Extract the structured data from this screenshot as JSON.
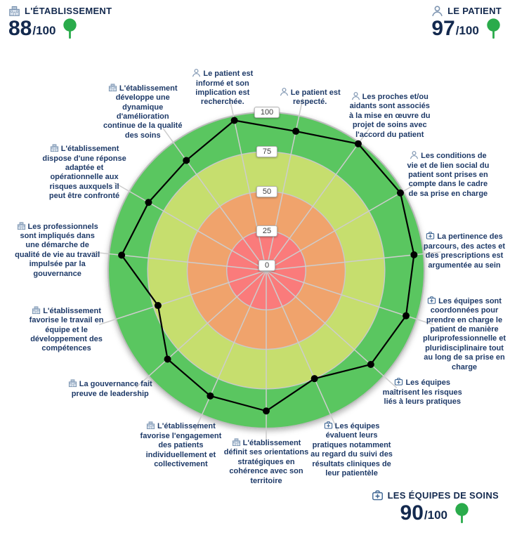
{
  "header_panels": [
    {
      "id": "etablissement",
      "icon": "hospital",
      "label": "L'ÉTABLISSEMENT",
      "score": "88",
      "denominator": "/100"
    },
    {
      "id": "patient",
      "icon": "patient",
      "label": "LE PATIENT",
      "score": "97",
      "denominator": "/100"
    },
    {
      "id": "equipes",
      "icon": "care",
      "label": "LES ÉQUIPES DE SOINS",
      "score": "90",
      "denominator": "/100"
    }
  ],
  "chart_data": {
    "type": "radar",
    "title": "",
    "rlim": [
      0,
      100
    ],
    "tick_labels": [
      "0",
      "25",
      "50",
      "75",
      "100"
    ],
    "tick_values": [
      0,
      25,
      50,
      75,
      100
    ],
    "start_angle_deg": -102,
    "angle_step_deg": 24,
    "grid": "on",
    "legend": "none",
    "colors": {
      "ring_0_25": "#fa7b7b",
      "ring_25_50": "#f0a36c",
      "ring_50_75": "#c6de6e",
      "ring_75_100": "#5ac660",
      "ring_border": "#c9c9c9",
      "outer_border": "#bdbdbd",
      "spoke": "#cdcdcd",
      "series": "#000000",
      "accent_green": "#2aab4b",
      "navy": "#13294e"
    },
    "axes": [
      {
        "label": "Le patient est informé et son implication est recherchée.",
        "icon": "patient",
        "value": 97
      },
      {
        "label": "Le patient est respecté.",
        "icon": "patient",
        "value": 90
      },
      {
        "label": "Les proches et/ou aidants sont associés à la mise en œuvre du projet de soins avec l'accord du patient",
        "icon": "patient",
        "value": 99
      },
      {
        "label": "Les conditions de vie et de lien social du patient sont prises en compte dans le cadre de sa prise en charge",
        "icon": "patient",
        "value": 98
      },
      {
        "label": "La pertinence des parcours, des actes et des prescriptions est argumentée au sein",
        "icon": "care",
        "value": 94
      },
      {
        "label": "Les équipes sont coordonnées pour prendre en charge le patient de manière pluriprofessionnelle et pluridisciplinaire tout au long de sa prise en charge",
        "icon": "care",
        "value": 93
      },
      {
        "label": "Les équipes maîtrisent les risques liés à leurs pratiques",
        "icon": "care",
        "value": 89
      },
      {
        "label": "Les équipes évaluent leurs pratiques notamment au regard du suivi des résultats cliniques de leur patientèle",
        "icon": "care",
        "value": 75
      },
      {
        "label": "L'établissement définit ses orientations stratégiques en cohérence avec son territoire",
        "icon": "hospital",
        "value": 89
      },
      {
        "label": "L'établissement favorise l'engagement des patients individuellement et collectivement",
        "icon": "hospital",
        "value": 87
      },
      {
        "label": "La gouvernance fait preuve de leadership",
        "icon": "hospital",
        "value": 84
      },
      {
        "label": "L'établissement favorise le travail en équipe et le développement des compétences",
        "icon": "hospital",
        "value": 72
      },
      {
        "label": "Les professionnels sont impliqués dans une démarche de qualité de vie au travail impulsée par la gouvernance",
        "icon": "hospital",
        "value": 92
      },
      {
        "label": "L'établissement dispose d'une réponse adaptée et opérationnelle aux risques auxquels il peut être confronté",
        "icon": "hospital",
        "value": 86
      },
      {
        "label": "L'établissement développe une dynamique d'amélioration continue de la qualité des soins",
        "icon": "hospital",
        "value": 86
      }
    ]
  }
}
